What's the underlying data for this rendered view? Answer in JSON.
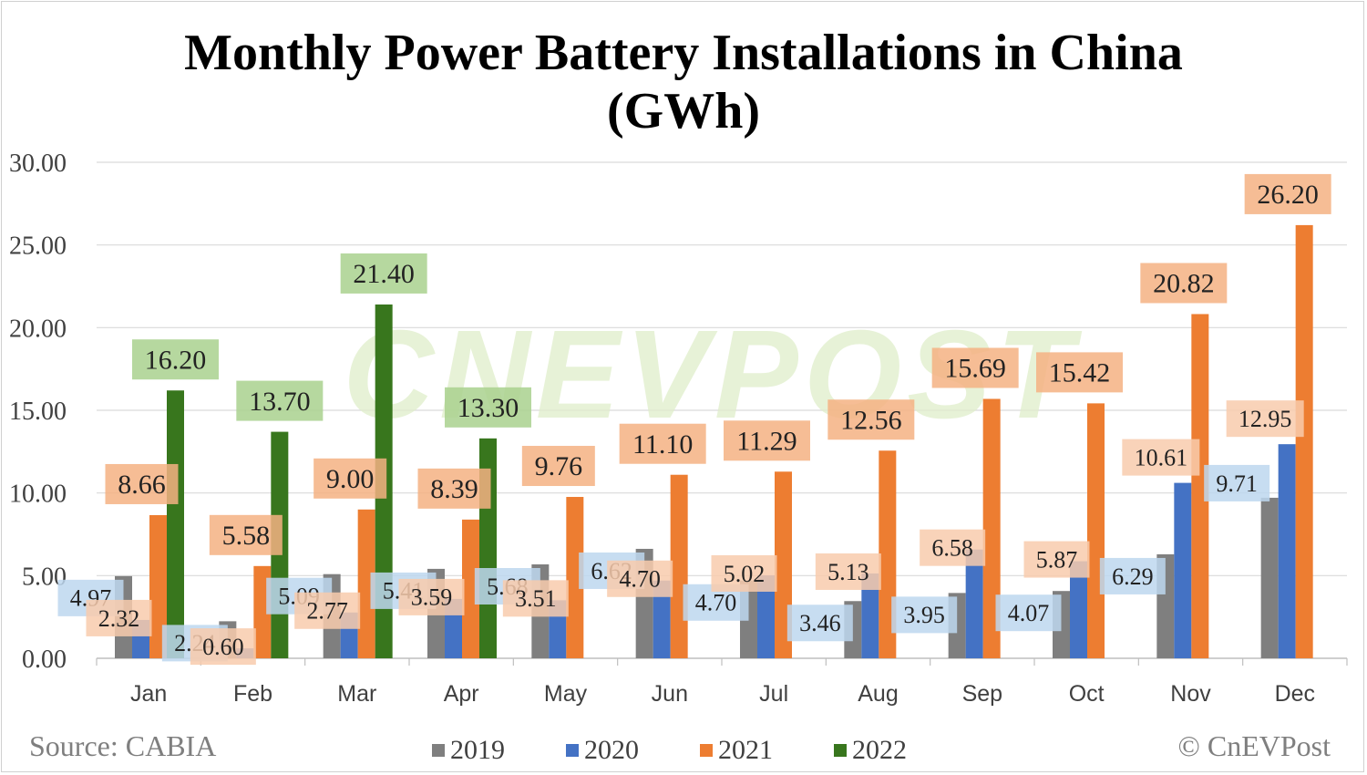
{
  "chart_data": {
    "type": "bar",
    "title": "Monthly Power Battery Installations in China (GWh)",
    "title_lines": [
      "Monthly Power Battery Installations in China",
      "(GWh)"
    ],
    "categories": [
      "Jan",
      "Feb",
      "Mar",
      "Apr",
      "May",
      "Jun",
      "Jul",
      "Aug",
      "Sep",
      "Oct",
      "Nov",
      "Dec"
    ],
    "series": [
      {
        "name": "2019",
        "color": "#7f7f7f",
        "label_bg": "#bdd7ee",
        "values": [
          4.97,
          2.24,
          5.09,
          5.41,
          5.68,
          6.62,
          4.7,
          3.46,
          3.95,
          4.07,
          6.29,
          9.71
        ]
      },
      {
        "name": "2020",
        "color": "#4472c4",
        "label_bg": "#f8cbad",
        "values": [
          2.32,
          0.6,
          2.77,
          3.59,
          3.51,
          4.7,
          5.02,
          5.13,
          6.58,
          5.87,
          10.61,
          12.95
        ]
      },
      {
        "name": "2021",
        "color": "#ed7d31",
        "label_bg": "#f4b183",
        "values": [
          8.66,
          5.58,
          9.0,
          8.39,
          9.76,
          11.1,
          11.29,
          12.56,
          15.69,
          15.42,
          20.82,
          26.2
        ]
      },
      {
        "name": "2022",
        "color": "#38761d",
        "label_bg": "#a9d18e",
        "values": [
          16.2,
          13.7,
          21.4,
          13.3,
          null,
          null,
          null,
          null,
          null,
          null,
          null,
          null
        ]
      }
    ],
    "data_labels": [
      "4.97",
      "2.24",
      "5.09",
      "5.41",
      "5.68",
      "6.62",
      "4.70",
      "3.46",
      "3.95",
      "4.07",
      "6.29",
      "9.71",
      "2.32",
      "0.60",
      "2.77",
      "3.59",
      "3.51",
      "4.70",
      "5.02",
      "5.13",
      "6.58",
      "5.87",
      "10.61",
      "12.95",
      "8.66",
      "5.58",
      "9.00",
      "8.39",
      "9.76",
      "11.10",
      "11.29",
      "12.56",
      "15.69",
      "15.42",
      "20.82",
      "26.20",
      "16.20",
      "13.70",
      "21.40",
      "13.30"
    ],
    "yticks": [
      "0.00",
      "5.00",
      "10.00",
      "15.00",
      "20.00",
      "25.00",
      "30.00"
    ],
    "ylim": [
      0,
      30
    ],
    "grid": true,
    "legend_position": "bottom",
    "watermark": "CNEVPOST"
  },
  "footer": {
    "source": "Source: CABIA",
    "credit": "© CnEVPost"
  }
}
